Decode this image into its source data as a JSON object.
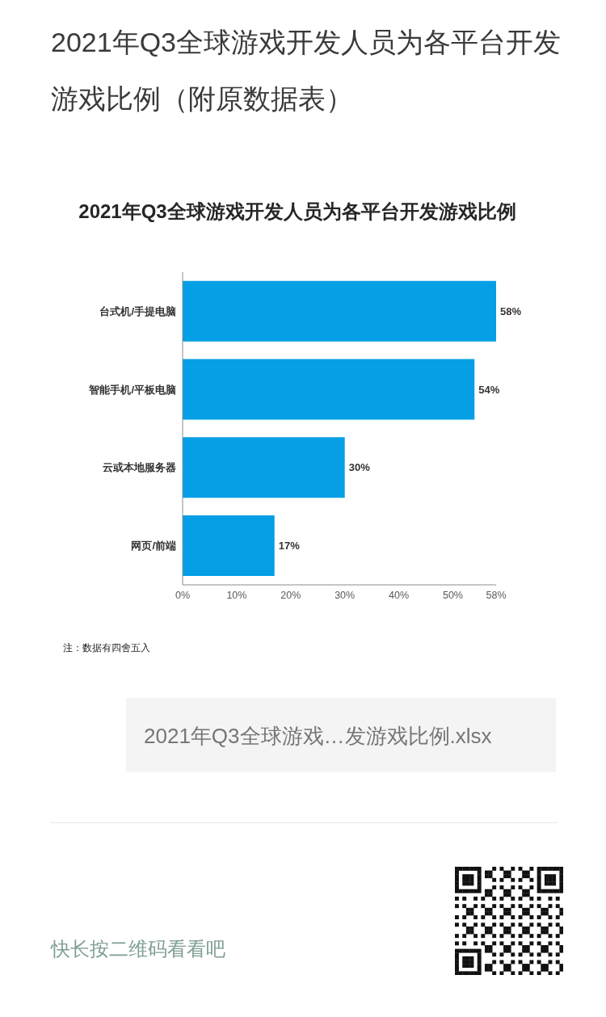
{
  "chart_data": {
    "type": "bar",
    "orientation": "horizontal",
    "title": "2021年Q3全球游戏开发人员为各平台开发游戏比例（附原数据表）",
    "subtitle": "2021年Q3全球游戏开发人员为各平台开发游戏比例",
    "categories": [
      "台式机/手提电脑",
      "智能手机/平板电脑",
      "云或本地服务器",
      "网页/前端"
    ],
    "values": [
      58,
      54,
      30,
      17
    ],
    "color": "#049fe5",
    "value_labels": [
      "58%",
      "54%",
      "30%",
      "17%"
    ],
    "xlim": [
      0,
      58
    ],
    "xticks": [
      {
        "value": 0,
        "label": "0%"
      },
      {
        "value": 10,
        "label": "10%"
      },
      {
        "value": 20,
        "label": "20%"
      },
      {
        "value": 30,
        "label": "30%"
      },
      {
        "value": 40,
        "label": "40%"
      },
      {
        "value": 50,
        "label": "50%"
      },
      {
        "value": 58,
        "label": "58%"
      }
    ],
    "annotations": [
      "注：数据有四舍五入",
      "2021年Q3全球游戏…发游戏比例.xlsx",
      "快长按二维码看看吧"
    ]
  }
}
